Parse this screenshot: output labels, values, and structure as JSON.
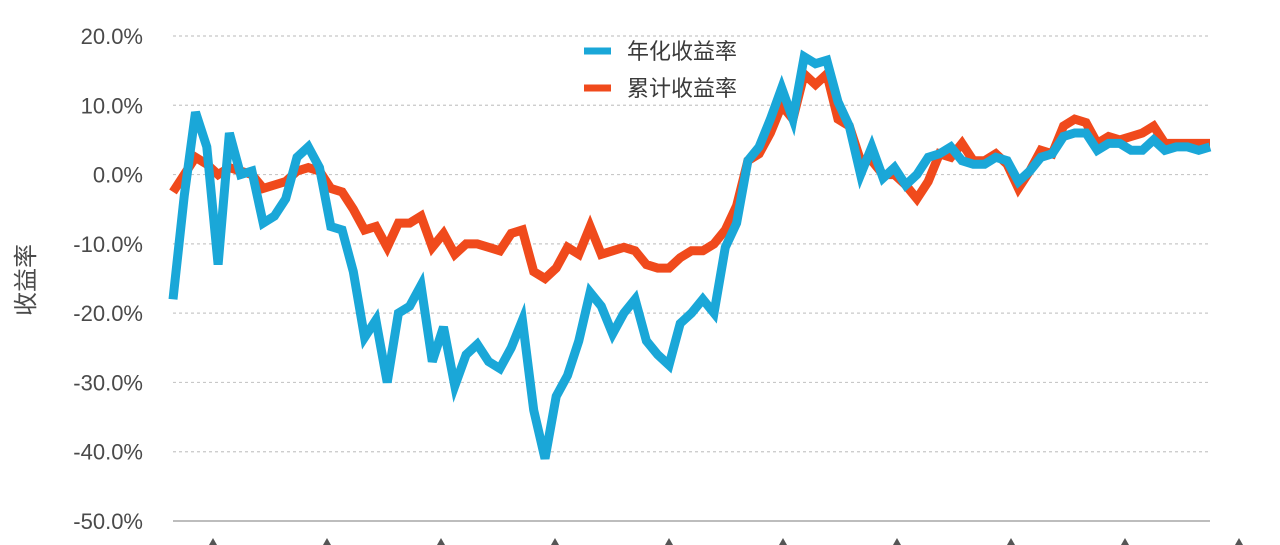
{
  "chart_data": {
    "type": "line",
    "ylabel": "收益率",
    "ylim": [
      -50,
      20
    ],
    "yticks": [
      20,
      10,
      0,
      -10,
      -20,
      -30,
      -40,
      -50
    ],
    "ytick_labels": [
      "20.0%",
      "10.0%",
      "0.0%",
      "-10.0%",
      "-20.0%",
      "-30.0%",
      "-40.0%",
      "-50.0%"
    ],
    "grid": true,
    "legend_position": "top-center",
    "x_count": 93,
    "series": [
      {
        "name": "年化收益率",
        "color": "#1aa7d8",
        "values": [
          -18,
          -3,
          9,
          4,
          -13,
          6,
          0,
          0.5,
          -7,
          -6,
          -3.5,
          2.5,
          4,
          1,
          -7.5,
          -8,
          -14,
          -23.5,
          -21,
          -30,
          -20,
          -19,
          -16,
          -27,
          -22,
          -30.5,
          -26,
          -24.5,
          -27,
          -28,
          -25,
          -21,
          -34,
          -41,
          -32,
          -29,
          -24,
          -17,
          -19,
          -23,
          -20,
          -18,
          -24,
          -26,
          -27.5,
          -21.5,
          -20,
          -18,
          -20,
          -10.5,
          -7,
          2,
          4,
          8,
          12.5,
          8,
          17,
          16,
          16.5,
          10.5,
          7,
          0,
          4,
          -0.5,
          1,
          -1.5,
          0,
          2.5,
          3,
          4,
          2,
          1.5,
          1.5,
          2.5,
          2,
          -1,
          0.5,
          2.5,
          3,
          5.5,
          6,
          6,
          3.5,
          4.5,
          4.5,
          3.5,
          3.5,
          5,
          3.5,
          4,
          4,
          3.5,
          4
        ]
      },
      {
        "name": "累计收益率",
        "color": "#f04a1c",
        "values": [
          -2.5,
          0,
          2.5,
          1.5,
          0,
          1,
          0.5,
          0,
          -2,
          -1.5,
          -1,
          0.5,
          1,
          0.5,
          -2,
          -2.5,
          -5,
          -8,
          -7.5,
          -10.5,
          -7,
          -7,
          -6,
          -10.5,
          -8.5,
          -11.5,
          -10,
          -10,
          -10.5,
          -11,
          -8.5,
          -8,
          -14,
          -15,
          -13.5,
          -10.5,
          -11.5,
          -7.5,
          -11.5,
          -11,
          -10.5,
          -11,
          -13,
          -13.5,
          -13.5,
          -12,
          -11,
          -11,
          -10,
          -8,
          -4.5,
          2,
          3,
          6,
          10,
          8,
          14.5,
          13,
          14.5,
          8,
          7,
          2,
          2,
          0,
          0,
          -1.5,
          -3.5,
          -1,
          3,
          2.5,
          4.5,
          2,
          2,
          3,
          1.5,
          -2,
          0.5,
          3.5,
          3,
          7,
          8,
          7.5,
          4.5,
          5.5,
          5,
          5.5,
          6,
          7,
          4.5,
          4.5,
          4.5,
          4.5,
          4.5
        ]
      }
    ]
  }
}
